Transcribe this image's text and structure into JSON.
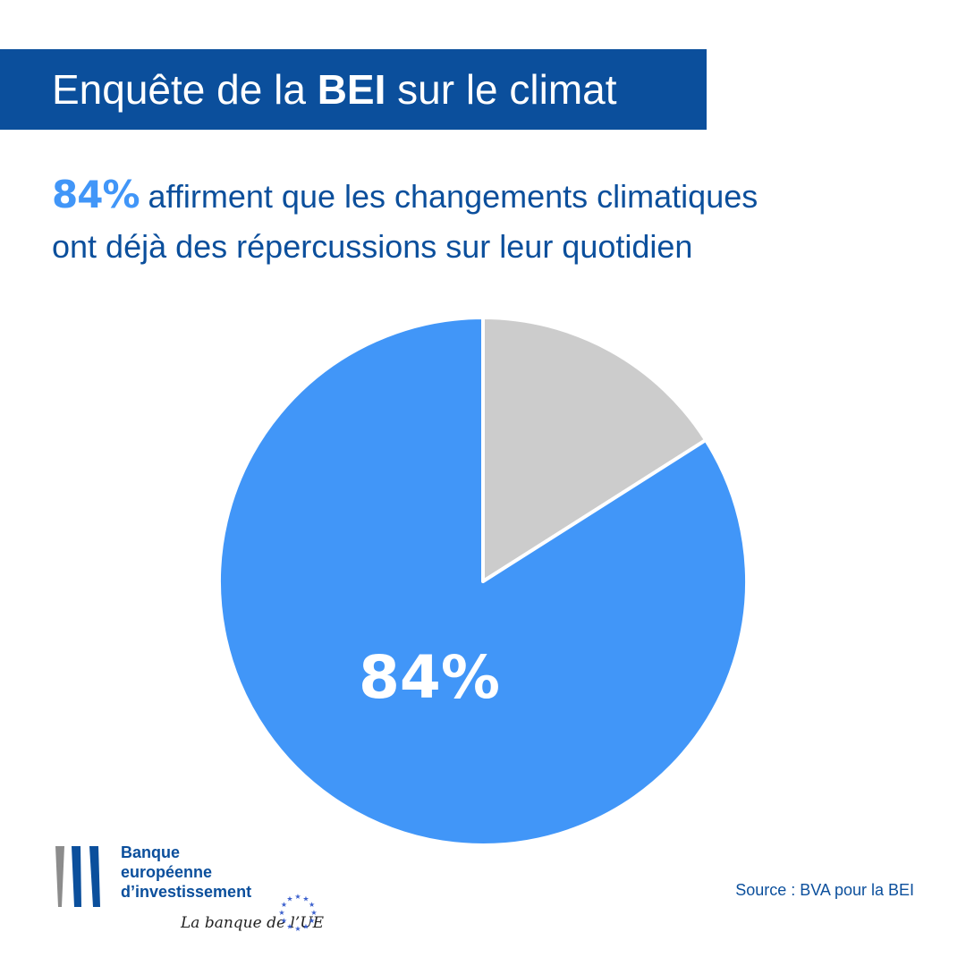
{
  "header": {
    "title_before": "Enquête de la ",
    "title_bold": "BEI",
    "title_after": " sur le climat"
  },
  "headline": {
    "highlight": "84%",
    "line1_rest": " affirment que les changements climatiques",
    "line2": "ont déjà des répercussions sur leur quotidien"
  },
  "chart_data": {
    "type": "pie",
    "title": "",
    "slices": [
      {
        "label": "84%",
        "value": 84,
        "color": "#4196f8"
      },
      {
        "label": "",
        "value": 16,
        "color": "#cccccc"
      }
    ]
  },
  "logo": {
    "line1": "Banque",
    "line2": "européenne",
    "line3": "d’investissement",
    "tagline": "La banque de l’UE"
  },
  "footer": {
    "source": "Source : BVA pour la BEI"
  },
  "colors": {
    "brand_blue": "#0b4f9c",
    "accent_blue": "#4196f8",
    "grey_slice": "#cccccc"
  }
}
